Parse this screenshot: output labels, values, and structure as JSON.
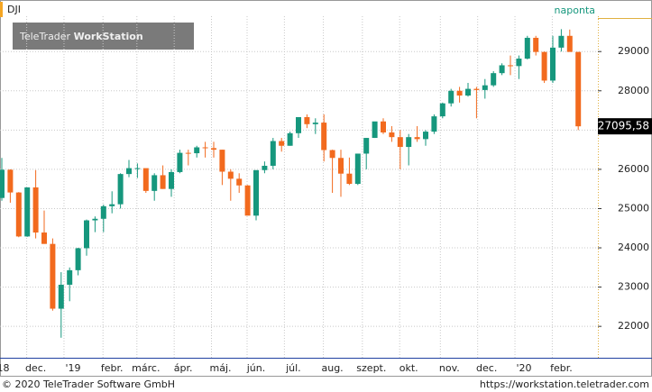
{
  "chart_data": {
    "type": "candlestick",
    "title": "DJI",
    "period": "naponta",
    "watermark": [
      "TeleTrader",
      "WorkStation"
    ],
    "up_color": "#16977d",
    "down_color": "#f26a1e",
    "grid": true,
    "ylim": [
      21200,
      29900
    ],
    "yticks": [
      22000,
      23000,
      24000,
      25000,
      26000,
      27000,
      28000,
      29000
    ],
    "last_value": {
      "value": 27095.58,
      "label": "27095,58"
    },
    "xticks": [
      {
        "value": 0,
        "label": "'18"
      },
      {
        "value": 4,
        "label": "dec."
      },
      {
        "value": 8.4,
        "label": "'19"
      },
      {
        "value": 13,
        "label": "febr."
      },
      {
        "value": 17,
        "label": "márc."
      },
      {
        "value": 21.4,
        "label": "ápr."
      },
      {
        "value": 25.8,
        "label": "máj."
      },
      {
        "value": 30,
        "label": "jún."
      },
      {
        "value": 34.4,
        "label": "júl."
      },
      {
        "value": 39,
        "label": "aug."
      },
      {
        "value": 43.6,
        "label": "szept."
      },
      {
        "value": 48,
        "label": "okt."
      },
      {
        "value": 52.8,
        "label": "nov."
      },
      {
        "value": 57.2,
        "label": "dec."
      },
      {
        "value": 61.6,
        "label": "'20"
      },
      {
        "value": 66,
        "label": "febr."
      }
    ],
    "open": [
      25270,
      25990,
      25410,
      24290,
      25540,
      24390,
      24100,
      22450,
      23060,
      23430,
      23990,
      24700,
      24740,
      25060,
      25110,
      25880,
      26030,
      26030,
      25450,
      25850,
      25500,
      25930,
      26420,
      26410,
      26560,
      26540,
      26500,
      25940,
      25760,
      25590,
      24820,
      25980,
      26090,
      26720,
      26600,
      26920,
      27330,
      27150,
      27190,
      26490,
      26290,
      25890,
      25630,
      26400,
      26800,
      27220,
      26940,
      26820,
      26570,
      26820,
      26770,
      26960,
      27350,
      27680,
      28000,
      27880,
      28050,
      28020,
      28140,
      28450,
      28650,
      28630,
      28820,
      29350,
      28990,
      28260,
      29100,
      29400,
      28990
    ],
    "high": [
      26290,
      26000,
      25420,
      25540,
      25980,
      24950,
      24240,
      23380,
      23500,
      24000,
      24720,
      24800,
      25100,
      25440,
      25900,
      26240,
      26150,
      26000,
      25900,
      26100,
      26000,
      26500,
      26500,
      26600,
      26700,
      26700,
      26500,
      26000,
      25900,
      25600,
      25900,
      26200,
      26800,
      26800,
      26960,
      27330,
      27400,
      27300,
      27400,
      26500,
      26500,
      26300,
      26400,
      26800,
      27200,
      27300,
      27100,
      27000,
      26900,
      27100,
      27000,
      27400,
      27700,
      28050,
      28100,
      28200,
      28100,
      28300,
      28500,
      28700,
      28900,
      28900,
      29400,
      29400,
      29000,
      29400,
      29570,
      29560,
      28990
    ],
    "low": [
      25200,
      25150,
      24270,
      24280,
      24240,
      24100,
      22400,
      21710,
      22640,
      23300,
      23800,
      24400,
      24400,
      24880,
      25000,
      25800,
      25780,
      25400,
      25200,
      25500,
      25300,
      25900,
      26100,
      26300,
      26300,
      26300,
      25600,
      25200,
      25400,
      24900,
      24700,
      25900,
      26000,
      26450,
      26600,
      26800,
      27050,
      26900,
      26200,
      25400,
      25300,
      25600,
      25600,
      26000,
      26800,
      26900,
      26700,
      26000,
      26100,
      26700,
      26600,
      26900,
      27300,
      27600,
      27700,
      27850,
      27300,
      27800,
      28100,
      28400,
      28400,
      28300,
      28800,
      28900,
      28200,
      28200,
      29000,
      29000,
      27000
    ],
    "close": [
      25990,
      25410,
      24290,
      25540,
      24390,
      24100,
      22450,
      23060,
      23430,
      23990,
      24700,
      24740,
      25060,
      25110,
      25880,
      26030,
      26030,
      25450,
      25850,
      25500,
      25930,
      26420,
      26410,
      26560,
      26540,
      26500,
      25940,
      25760,
      25590,
      24820,
      25980,
      26090,
      26720,
      26600,
      26920,
      27330,
      27150,
      27190,
      26490,
      26290,
      25890,
      25630,
      26400,
      26800,
      27220,
      26940,
      26820,
      26570,
      26820,
      26770,
      26960,
      27350,
      27680,
      28000,
      27880,
      28050,
      28020,
      28140,
      28450,
      28650,
      28630,
      28820,
      29350,
      28990,
      28260,
      29100,
      29400,
      28990,
      27095.58
    ]
  },
  "footer": {
    "copyright": "© 2020 TeleTrader Software GmbH",
    "url": "https://workstation.teletrader.com"
  }
}
